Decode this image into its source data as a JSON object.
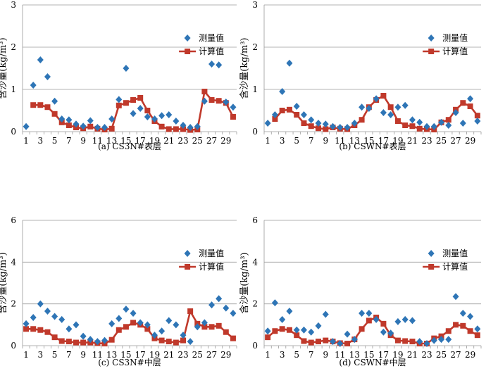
{
  "chart_data": [
    {
      "type": "line",
      "title": "",
      "caption": "(a) CS3N#表层",
      "xlabel": "",
      "ylabel": "含沙量(kg/m³)",
      "ylim": [
        0,
        3
      ],
      "yticks": [
        "0",
        "1",
        "2",
        "3"
      ],
      "x": [
        1,
        2,
        3,
        4,
        5,
        6,
        7,
        8,
        9,
        10,
        11,
        12,
        13,
        14,
        15,
        16,
        17,
        18,
        19,
        20,
        21,
        22,
        23,
        24,
        25,
        26,
        27,
        28,
        29,
        30
      ],
      "xticks": [
        "1",
        "3",
        "5",
        "7",
        "9",
        "11",
        "13",
        "15",
        "17",
        "19",
        "21",
        "23",
        "25",
        "27",
        "29"
      ],
      "legend": {
        "position": "top-right",
        "measured": "测量值",
        "computed": "计算值"
      },
      "series": [
        {
          "name": "测量值",
          "style": "scatter",
          "marker": "diamond",
          "color": "#2e75b6",
          "values": [
            0.12,
            1.1,
            1.7,
            1.3,
            0.72,
            0.3,
            0.28,
            0.18,
            0.13,
            0.26,
            0.1,
            0.1,
            0.3,
            0.76,
            1.5,
            0.43,
            0.55,
            0.35,
            0.3,
            0.38,
            0.4,
            0.25,
            0.15,
            0.1,
            0.12,
            0.72,
            1.6,
            1.58,
            0.7,
            0.58
          ]
        },
        {
          "name": "计算值",
          "style": "line",
          "marker": "square",
          "color": "#c0392b",
          "values": [
            null,
            0.63,
            0.63,
            0.58,
            0.42,
            0.22,
            0.15,
            0.1,
            0.08,
            0.12,
            0.07,
            0.05,
            0.07,
            0.62,
            0.68,
            0.75,
            0.8,
            0.5,
            0.25,
            0.12,
            0.06,
            0.06,
            0.06,
            0.04,
            0.05,
            0.95,
            0.75,
            0.73,
            0.68,
            0.35
          ]
        }
      ]
    },
    {
      "type": "line",
      "title": "",
      "caption": "(b) CSWN#表层",
      "xlabel": "",
      "ylabel": "含沙量(kg/m³)",
      "ylim": [
        0,
        3
      ],
      "yticks": [
        "0",
        "1",
        "2",
        "3"
      ],
      "x": [
        1,
        2,
        3,
        4,
        5,
        6,
        7,
        8,
        9,
        10,
        11,
        12,
        13,
        14,
        15,
        16,
        17,
        18,
        19,
        20,
        21,
        22,
        23,
        24,
        25,
        26,
        27,
        28,
        29,
        30
      ],
      "xticks": [
        "1",
        "3",
        "5",
        "7",
        "9",
        "11",
        "13",
        "15",
        "17",
        "19",
        "21",
        "23",
        "25",
        "27",
        "29"
      ],
      "legend": {
        "position": "top-right",
        "measured": "测量值",
        "computed": "计算值"
      },
      "series": [
        {
          "name": "测量值",
          "style": "scatter",
          "marker": "diamond",
          "color": "#2e75b6",
          "values": [
            0.2,
            0.4,
            0.95,
            1.62,
            0.6,
            0.4,
            0.28,
            0.2,
            0.18,
            0.12,
            0.1,
            0.1,
            0.2,
            0.58,
            0.55,
            0.78,
            0.45,
            0.4,
            0.58,
            0.62,
            0.28,
            0.22,
            0.12,
            0.12,
            0.22,
            0.15,
            0.45,
            0.2,
            0.78,
            0.25
          ]
        },
        {
          "name": "计算值",
          "style": "line",
          "marker": "square",
          "color": "#c0392b",
          "values": [
            null,
            0.3,
            0.5,
            0.52,
            0.4,
            0.2,
            0.13,
            0.08,
            0.06,
            0.1,
            0.07,
            0.06,
            0.15,
            0.28,
            0.58,
            0.75,
            0.85,
            0.58,
            0.25,
            0.15,
            0.13,
            0.07,
            0.06,
            0.05,
            0.22,
            0.28,
            0.52,
            0.68,
            0.6,
            0.38
          ]
        }
      ]
    },
    {
      "type": "line",
      "title": "",
      "caption": "(c) CS3N#中层",
      "xlabel": "",
      "ylabel": "含沙量(kg/m³)",
      "ylim": [
        0,
        6
      ],
      "yticks": [
        "0",
        "2",
        "4",
        "6"
      ],
      "x": [
        1,
        2,
        3,
        4,
        5,
        6,
        7,
        8,
        9,
        10,
        11,
        12,
        13,
        14,
        15,
        16,
        17,
        18,
        19,
        20,
        21,
        22,
        23,
        24,
        25,
        26,
        27,
        28,
        29,
        30
      ],
      "xticks": [
        "1",
        "3",
        "5",
        "7",
        "9",
        "11",
        "13",
        "15",
        "17",
        "19",
        "21",
        "23",
        "25",
        "27",
        "29"
      ],
      "legend": {
        "position": "top-right",
        "measured": "测量值",
        "computed": "计算值"
      },
      "series": [
        {
          "name": "测量值",
          "style": "scatter",
          "marker": "diamond",
          "color": "#2e75b6",
          "values": [
            1.05,
            1.35,
            2.0,
            1.65,
            1.4,
            1.25,
            0.8,
            1.0,
            0.45,
            0.3,
            0.2,
            0.25,
            1.05,
            1.3,
            1.75,
            1.55,
            1.1,
            1.0,
            0.5,
            0.7,
            1.2,
            1.0,
            0.5,
            0.2,
            0.9,
            1.1,
            1.95,
            2.25,
            1.8,
            1.55
          ]
        },
        {
          "name": "计算值",
          "style": "line",
          "marker": "square",
          "color": "#c0392b",
          "values": [
            0.8,
            0.8,
            0.75,
            0.65,
            0.4,
            0.22,
            0.2,
            0.15,
            0.15,
            0.15,
            0.12,
            0.1,
            0.28,
            0.75,
            0.9,
            1.1,
            1.0,
            0.8,
            0.35,
            0.25,
            0.2,
            0.15,
            0.25,
            1.65,
            1.05,
            0.9,
            0.9,
            0.95,
            0.65,
            0.35
          ]
        }
      ]
    },
    {
      "type": "line",
      "title": "",
      "caption": "(d) CSWN#中层",
      "xlabel": "",
      "ylabel": "含沙量(kg/m³)",
      "ylim": [
        0,
        6
      ],
      "yticks": [
        "0",
        "2",
        "4",
        "6"
      ],
      "x": [
        1,
        2,
        3,
        4,
        5,
        6,
        7,
        8,
        9,
        10,
        11,
        12,
        13,
        14,
        15,
        16,
        17,
        18,
        19,
        20,
        21,
        22,
        23,
        24,
        25,
        26,
        27,
        28,
        29,
        30
      ],
      "xticks": [
        "1",
        "3",
        "5",
        "7",
        "9",
        "11",
        "13",
        "15",
        "17",
        "19",
        "21",
        "23",
        "25",
        "27",
        "29"
      ],
      "legend": {
        "position": "top-right",
        "measured": "测量值",
        "computed": "计算值"
      },
      "series": [
        {
          "name": "测量值",
          "style": "scatter",
          "marker": "diamond",
          "color": "#2e75b6",
          "values": [
            0.7,
            2.05,
            1.25,
            1.65,
            0.75,
            0.75,
            0.65,
            0.95,
            1.5,
            0.2,
            0.1,
            0.55,
            0.3,
            1.55,
            1.55,
            1.25,
            0.65,
            0.6,
            1.15,
            1.25,
            1.2,
            0.2,
            0.1,
            0.25,
            0.3,
            0.3,
            2.35,
            1.55,
            1.4,
            0.8
          ]
        },
        {
          "name": "计算值",
          "style": "line",
          "marker": "square",
          "color": "#c0392b",
          "values": [
            0.4,
            0.7,
            0.8,
            0.75,
            0.5,
            0.22,
            0.15,
            0.2,
            0.25,
            0.2,
            0.12,
            0.1,
            0.3,
            0.8,
            1.2,
            1.35,
            1.05,
            0.5,
            0.25,
            0.22,
            0.2,
            0.1,
            0.1,
            0.35,
            0.45,
            0.7,
            1.0,
            0.95,
            0.7,
            0.5
          ]
        }
      ]
    }
  ]
}
